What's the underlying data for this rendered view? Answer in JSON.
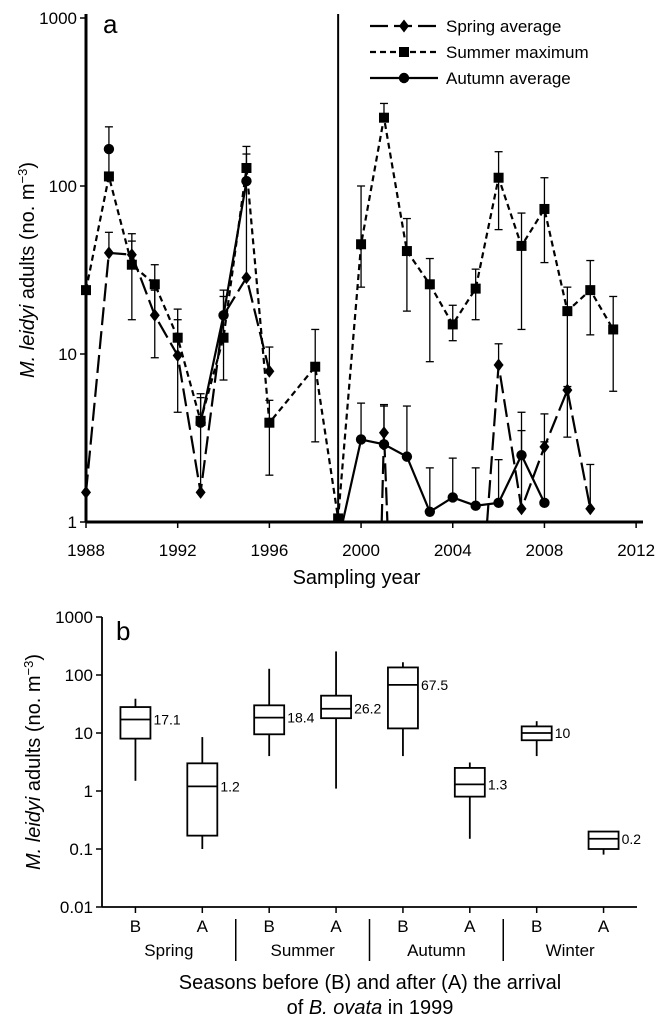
{
  "chart_data": [
    {
      "type": "line",
      "panel_label": "a",
      "xlabel": "Sampling year",
      "ylabel_parts": [
        "M. leidyi",
        " adults (no. m",
        "−3",
        ")"
      ],
      "y_scale": "log",
      "ylim": [
        1,
        1000
      ],
      "xlim": [
        1988,
        2012.3
      ],
      "x_ticks": [
        1988,
        1992,
        1996,
        2000,
        2004,
        2008,
        2012
      ],
      "x_tick_labels": [
        "1988",
        "1992",
        "1996",
        "2000",
        "2004",
        "2008",
        "2012"
      ],
      "y_ticks": [
        1,
        10,
        100,
        1000
      ],
      "y_tick_labels": [
        "1",
        "10",
        "100",
        "1000"
      ],
      "event_line_x": 1999,
      "legend_position": "top-right",
      "series": [
        {
          "name": "Spring average",
          "marker": "diamond",
          "line_style": "long-dash",
          "segments": [
            [
              [
                1988,
                1.5
              ],
              [
                1989,
                40
              ],
              [
                1990,
                39
              ],
              [
                1991,
                17
              ],
              [
                1992,
                9.8
              ],
              [
                1993,
                1.5
              ],
              [
                1994,
                17
              ],
              [
                1995,
                28.5
              ],
              [
                1996,
                7.9
              ]
            ],
            [
              [
                2000.9,
                1
              ],
              [
                2001,
                3.4
              ],
              [
                2001.15,
                1
              ]
            ],
            [
              [
                2005.5,
                1
              ],
              [
                2006,
                8.6
              ],
              [
                2007,
                1.2
              ],
              [
                2008,
                2.8
              ],
              [
                2009,
                6.1
              ],
              [
                2010,
                1.2
              ]
            ]
          ],
          "error_bars": [
            [
              1989,
              40,
              53
            ],
            [
              1990,
              39,
              52
            ],
            [
              1991,
              17,
              24
            ],
            [
              1992,
              9.8,
              16
            ],
            [
              1993,
              1.5,
              5.5
            ],
            [
              1994,
              17,
              24
            ],
            [
              1995,
              28.5,
              155
            ],
            [
              1996,
              7.9,
              11
            ],
            [
              2001,
              3.4,
              5
            ],
            [
              2006,
              8.6,
              11.5
            ],
            [
              2007,
              1.2,
              4.5
            ],
            [
              2008,
              2.8,
              4.4
            ],
            [
              2009,
              6.1,
              6.4
            ],
            [
              2010,
              1.2,
              2.2
            ]
          ]
        },
        {
          "name": "Summer maximum",
          "marker": "square",
          "line_style": "short-dash",
          "segments": [
            [
              [
                1988,
                24
              ],
              [
                1989,
                114
              ],
              [
                1990,
                34
              ],
              [
                1991,
                26
              ],
              [
                1992,
                12.5
              ],
              [
                1993,
                4
              ],
              [
                1994,
                12.5
              ],
              [
                1995,
                128
              ],
              [
                1996,
                3.9
              ],
              [
                1998,
                8.4
              ],
              [
                1999,
                1.05
              ],
              [
                2000,
                45
              ],
              [
                2001,
                255
              ],
              [
                2002,
                41
              ],
              [
                2003,
                26
              ],
              [
                2004,
                15
              ],
              [
                2005,
                24.5
              ],
              [
                2006,
                112
              ],
              [
                2007,
                44
              ],
              [
                2008,
                73
              ],
              [
                2009,
                18
              ],
              [
                2010,
                24
              ],
              [
                2011,
                14
              ]
            ]
          ],
          "error_bars": [
            [
              1989,
              114,
              225
            ],
            [
              1990,
              34,
              47
            ],
            [
              1991,
              26,
              34
            ],
            [
              1992,
              12.5,
              18.5
            ],
            [
              1993,
              4,
              5.8
            ],
            [
              1994,
              12.5,
              22
            ],
            [
              1995,
              128,
              172
            ],
            [
              1996,
              3.9,
              5.3
            ],
            [
              1998,
              8.4,
              14
            ],
            [
              2000,
              45,
              100
            ],
            [
              2001,
              255,
              310
            ],
            [
              2002,
              41,
              64
            ],
            [
              2003,
              26,
              37
            ],
            [
              2004,
              15,
              19.5
            ],
            [
              2005,
              24.5,
              32
            ],
            [
              2006,
              112,
              160
            ],
            [
              2007,
              44,
              69
            ],
            [
              2008,
              73,
              112
            ],
            [
              2009,
              18,
              25
            ],
            [
              2010,
              24,
              36
            ],
            [
              2011,
              14,
              22
            ]
          ],
          "error_bars_lower": [
            [
              1990,
              34,
              16
            ],
            [
              1991,
              26,
              9.5
            ],
            [
              1992,
              12.5,
              4.5
            ],
            [
              1994,
              12.5,
              7
            ],
            [
              1996,
              3.9,
              1.9
            ],
            [
              1998,
              8.4,
              3
            ],
            [
              2000,
              45,
              25
            ],
            [
              2002,
              41,
              18
            ],
            [
              2003,
              26,
              9
            ],
            [
              2004,
              15,
              12
            ],
            [
              2005,
              24.5,
              16
            ],
            [
              2006,
              112,
              55
            ],
            [
              2007,
              44,
              14
            ],
            [
              2008,
              73,
              35
            ],
            [
              2009,
              18,
              3.2
            ],
            [
              2010,
              24,
              13
            ],
            [
              2011,
              14,
              6
            ]
          ]
        },
        {
          "name": "Autumn average",
          "marker": "circle",
          "line_style": "solid",
          "segments": [
            [
              [
                1989,
                166
              ]
            ],
            [
              [
                1993,
                3.9
              ],
              [
                1994,
                17
              ],
              [
                1995,
                107
              ]
            ],
            [
              [
                1999.2,
                1
              ],
              [
                2000,
                3.1
              ],
              [
                2001,
                2.9
              ],
              [
                2002,
                2.45
              ],
              [
                2003,
                1.15
              ],
              [
                2004,
                1.4
              ],
              [
                2005,
                1.25
              ],
              [
                2006,
                1.3
              ],
              [
                2007,
                2.5
              ],
              [
                2008,
                1.3
              ]
            ]
          ],
          "error_bars": [
            [
              2000,
              3.1,
              5.1
            ],
            [
              2001,
              2.9,
              4.9
            ],
            [
              2002,
              2.45,
              4.9
            ],
            [
              2003,
              1.15,
              2.1
            ],
            [
              2004,
              1.4,
              2.4
            ],
            [
              2005,
              1.25,
              2.1
            ],
            [
              2006,
              1.3,
              2.35
            ],
            [
              2007,
              2.5,
              3.5
            ],
            [
              2008,
              1.3,
              3
            ]
          ]
        }
      ]
    },
    {
      "type": "box",
      "panel_label": "b",
      "ylabel_parts": [
        "M. leidyi",
        " adults (no. m",
        "−3",
        ")"
      ],
      "y_scale": "log",
      "ylim": [
        0.01,
        1000
      ],
      "y_ticks": [
        0.01,
        0.1,
        1,
        10,
        100,
        1000
      ],
      "y_tick_labels": [
        "0.01",
        "0.1",
        "1",
        "10",
        "100",
        "1000"
      ],
      "xlabel_line1": "Seasons before (B) and after (A) the arrival",
      "xlabel_line2_parts": [
        "of ",
        "B. ovata",
        " in 1999"
      ],
      "groups": [
        "Spring",
        "Summer",
        "Autumn",
        "Winter"
      ],
      "boxes": [
        {
          "group": "Spring",
          "label": "B",
          "min": 1.5,
          "q1": 8,
          "median": 17.1,
          "q3": 28,
          "max": 39,
          "median_label": "17.1"
        },
        {
          "group": "Spring",
          "label": "A",
          "min": 0.1,
          "q1": 0.17,
          "median": 1.2,
          "q3": 3,
          "max": 8.5,
          "median_label": "1.2"
        },
        {
          "group": "Summer",
          "label": "B",
          "min": 4,
          "q1": 9.5,
          "median": 18.4,
          "q3": 30,
          "max": 128,
          "median_label": "18.4"
        },
        {
          "group": "Summer",
          "label": "A",
          "min": 1.1,
          "q1": 18,
          "median": 26.2,
          "q3": 44,
          "max": 255,
          "median_label": "26.2"
        },
        {
          "group": "Autumn",
          "label": "B",
          "min": 4,
          "q1": 12,
          "median": 67.5,
          "q3": 135,
          "max": 166,
          "median_label": "67.5"
        },
        {
          "group": "Autumn",
          "label": "A",
          "min": 0.15,
          "q1": 0.8,
          "median": 1.3,
          "q3": 2.5,
          "max": 3.1,
          "median_label": "1.3"
        },
        {
          "group": "Winter",
          "label": "B",
          "min": 4,
          "q1": 7.5,
          "median": 10,
          "q3": 13,
          "max": 16,
          "median_label": "10"
        },
        {
          "group": "Winter",
          "label": "A",
          "min": 0.08,
          "q1": 0.1,
          "median": 0.15,
          "q3": 0.2,
          "max": 0.2,
          "median_label": "0.2"
        }
      ]
    }
  ]
}
